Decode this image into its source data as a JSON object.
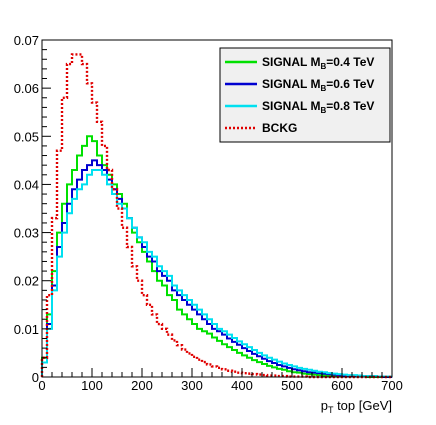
{
  "chart_data": {
    "type": "line",
    "xlabel_main": "p",
    "xlabel_sub": "T",
    "xlabel_rest": " top [GeV]",
    "xlim": [
      0,
      700
    ],
    "ylim": [
      0,
      0.07
    ],
    "grid": false,
    "legend_placement": "top-right",
    "x_ticks": [
      "0",
      "100",
      "200",
      "300",
      "400",
      "500",
      "600",
      "700"
    ],
    "y_ticks": [
      "0",
      "0.01",
      "0.02",
      "0.03",
      "0.04",
      "0.05",
      "0.06",
      "0.07"
    ],
    "bin_width": 10,
    "series": [
      {
        "name_prefix": "SIGNAL M",
        "name_sub": "B",
        "name_suffix": "=0.4 TeV",
        "color": "#00e000",
        "style": "solid",
        "values": [
          0.004,
          0.013,
          0.022,
          0.03,
          0.036,
          0.04,
          0.043,
          0.046,
          0.048,
          0.05,
          0.049,
          0.046,
          0.044,
          0.042,
          0.04,
          0.038,
          0.036,
          0.033,
          0.03,
          0.028,
          0.026,
          0.024,
          0.022,
          0.02,
          0.019,
          0.017,
          0.016,
          0.014,
          0.013,
          0.012,
          0.011,
          0.01,
          0.0095,
          0.009,
          0.0082,
          0.0075,
          0.0068,
          0.0062,
          0.0056,
          0.005,
          0.0045,
          0.004,
          0.0035,
          0.0031,
          0.0027,
          0.0023,
          0.002,
          0.0017,
          0.0015,
          0.0012,
          0.001,
          0.0009,
          0.0007,
          0.0006,
          0.0005,
          0.0004,
          0.0003,
          0.0003,
          0.0002,
          0.0002,
          0.0001,
          0.0001,
          0.0001,
          0.0001,
          0.0001,
          0.0,
          0.0,
          0.0,
          0.0,
          0.0
        ]
      },
      {
        "name_prefix": "SIGNAL M",
        "name_sub": "B",
        "name_suffix": "=0.6 TeV",
        "color": "#0000d0",
        "style": "solid",
        "values": [
          0.003,
          0.011,
          0.019,
          0.027,
          0.032,
          0.036,
          0.039,
          0.041,
          0.043,
          0.044,
          0.045,
          0.044,
          0.043,
          0.041,
          0.039,
          0.037,
          0.035,
          0.033,
          0.031,
          0.029,
          0.027,
          0.025,
          0.024,
          0.022,
          0.021,
          0.02,
          0.018,
          0.017,
          0.016,
          0.015,
          0.014,
          0.013,
          0.012,
          0.011,
          0.01,
          0.0095,
          0.0088,
          0.008,
          0.0073,
          0.0067,
          0.006,
          0.0054,
          0.0048,
          0.0043,
          0.0038,
          0.0033,
          0.0029,
          0.0025,
          0.0022,
          0.0019,
          0.0016,
          0.0014,
          0.0012,
          0.001,
          0.0009,
          0.0008,
          0.0007,
          0.0006,
          0.0005,
          0.0004,
          0.0003,
          0.0003,
          0.0002,
          0.0002,
          0.0001,
          0.0001,
          0.0001,
          0.0001,
          0.0,
          0.0
        ]
      },
      {
        "name_prefix": "SIGNAL M",
        "name_sub": "B",
        "name_suffix": "=0.8 TeV",
        "color": "#00e0f0",
        "style": "solid",
        "values": [
          0.003,
          0.01,
          0.018,
          0.025,
          0.03,
          0.034,
          0.037,
          0.039,
          0.04,
          0.042,
          0.043,
          0.043,
          0.042,
          0.04,
          0.038,
          0.036,
          0.035,
          0.033,
          0.031,
          0.029,
          0.028,
          0.026,
          0.025,
          0.023,
          0.022,
          0.021,
          0.019,
          0.018,
          0.017,
          0.016,
          0.015,
          0.014,
          0.013,
          0.012,
          0.011,
          0.01,
          0.0095,
          0.0088,
          0.0081,
          0.0074,
          0.0068,
          0.0062,
          0.0056,
          0.005,
          0.0045,
          0.004,
          0.0036,
          0.0032,
          0.0028,
          0.0025,
          0.0022,
          0.0019,
          0.0017,
          0.0015,
          0.0013,
          0.0011,
          0.001,
          0.0008,
          0.0007,
          0.0006,
          0.0005,
          0.0004,
          0.0004,
          0.0003,
          0.0002,
          0.0002,
          0.0002,
          0.0001,
          0.0001,
          0.0001
        ]
      },
      {
        "name_prefix": "BCKG",
        "name_sub": "",
        "name_suffix": "",
        "color": "#e00000",
        "style": "dotted",
        "values": [
          0.004,
          0.017,
          0.033,
          0.047,
          0.058,
          0.065,
          0.067,
          0.067,
          0.065,
          0.061,
          0.057,
          0.053,
          0.048,
          0.043,
          0.039,
          0.035,
          0.031,
          0.027,
          0.023,
          0.02,
          0.017,
          0.015,
          0.013,
          0.011,
          0.01,
          0.0088,
          0.0076,
          0.0066,
          0.0057,
          0.0049,
          0.0042,
          0.0036,
          0.0031,
          0.0026,
          0.0022,
          0.0019,
          0.0016,
          0.0013,
          0.0011,
          0.0009,
          0.0008,
          0.0007,
          0.0006,
          0.0005,
          0.0004,
          0.0003,
          0.0003,
          0.0002,
          0.0002,
          0.0001,
          0.0001,
          0.0001,
          0.0001,
          0.0,
          0.0,
          0.0,
          0.0,
          0.0,
          0.0,
          0.0,
          0.0,
          0.0,
          0.0,
          0.0,
          0.0,
          0.0,
          0.0,
          0.0,
          0.0,
          0.0
        ]
      }
    ]
  }
}
